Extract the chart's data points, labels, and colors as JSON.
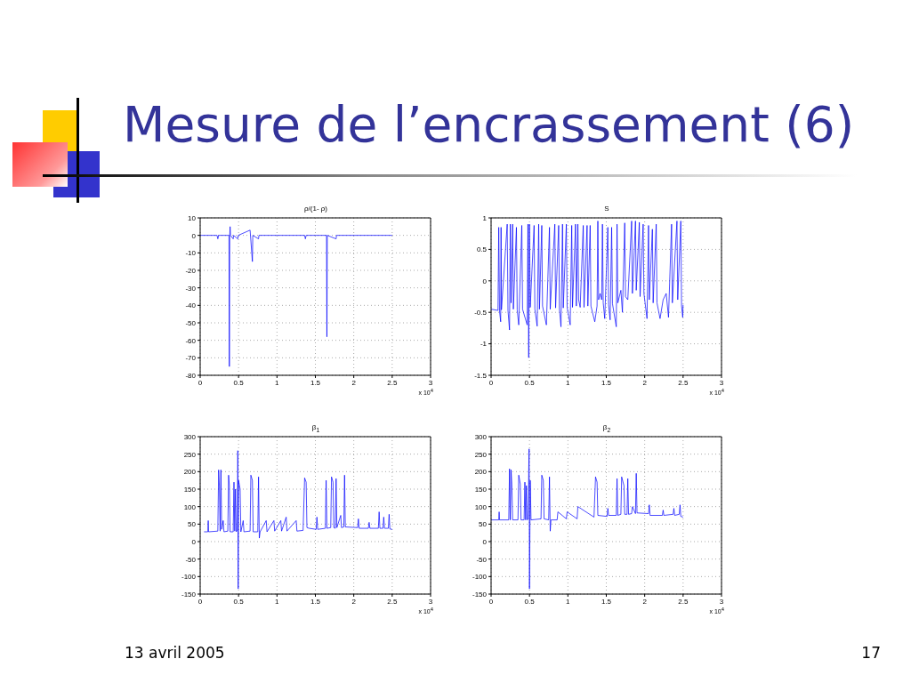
{
  "chart_data": [
    {
      "type": "other",
      "title": "Mesure de l’encrassement (6)",
      "annotations": [
        "13 avril 2005",
        "17"
      ]
    },
    {
      "type": "line",
      "title": "ρ/(1- ρ)",
      "color": "#0000ff",
      "grid": true,
      "xlim": [
        0,
        3
      ],
      "ylim": [
        -80,
        10
      ],
      "xticks": [
        0,
        0.5,
        1,
        1.5,
        2,
        2.5,
        3
      ],
      "yticks": [
        -80,
        -70,
        -60,
        -50,
        -40,
        -30,
        -20,
        -10,
        0,
        10
      ],
      "annotations": [
        "x 10$^{4}$"
      ],
      "x": [
        0,
        0.22,
        0.23,
        0.24,
        0.375,
        0.38,
        0.385,
        0.39,
        0.395,
        0.43,
        0.435,
        0.49,
        0.495,
        0.65,
        0.655,
        0.68,
        0.685,
        0.76,
        0.765,
        1.36,
        1.37,
        1.38,
        1.645,
        1.65,
        1.655,
        1.77,
        1.775,
        2.5
      ],
      "values": [
        0,
        0,
        -2,
        0,
        0,
        -75,
        0,
        5,
        0,
        -2,
        0,
        -2,
        0,
        3,
        0,
        -15,
        0,
        -2,
        0,
        0,
        -2,
        0,
        0,
        -58,
        0,
        -2,
        0,
        0
      ]
    },
    {
      "type": "line",
      "title": "S",
      "color": "#0000ff",
      "grid": true,
      "xlim": [
        0,
        3
      ],
      "ylim": [
        -1.5,
        1
      ],
      "xticks": [
        0,
        0.5,
        1,
        1.5,
        2,
        2.5,
        3
      ],
      "yticks": [
        -1.5,
        -1,
        -0.5,
        0,
        0.5,
        1
      ],
      "annotations": [
        "x 10$^{4}$"
      ],
      "x": [
        0,
        0.09,
        0.1,
        0.11,
        0.125,
        0.13,
        0.135,
        0.21,
        0.22,
        0.24,
        0.25,
        0.26,
        0.28,
        0.29,
        0.33,
        0.34,
        0.36,
        0.4,
        0.41,
        0.47,
        0.48,
        0.49,
        0.5,
        0.51,
        0.56,
        0.57,
        0.6,
        0.62,
        0.63,
        0.66,
        0.67,
        0.72,
        0.76,
        0.77,
        0.83,
        0.84,
        0.88,
        0.89,
        0.91,
        0.93,
        0.94,
        0.98,
        0.99,
        1.03,
        1.05,
        1.06,
        1.1,
        1.11,
        1.13,
        1.14,
        1.16,
        1.2,
        1.21,
        1.25,
        1.26,
        1.29,
        1.3,
        1.35,
        1.38,
        1.39,
        1.4,
        1.42,
        1.44,
        1.45,
        1.46,
        1.48,
        1.52,
        1.53,
        1.55,
        1.57,
        1.58,
        1.63,
        1.64,
        1.65,
        1.69,
        1.71,
        1.74,
        1.75,
        1.78,
        1.83,
        1.84,
        1.88,
        1.89,
        1.93,
        1.94,
        1.98,
        1.99,
        2.03,
        2.05,
        2.06,
        2.1,
        2.11,
        2.15,
        2.16,
        2.2,
        2.24,
        2.28,
        2.31,
        2.35,
        2.36,
        2.42,
        2.43,
        2.47,
        2.48,
        2.495,
        2.5
      ],
      "values": [
        -0.45,
        -0.47,
        0.85,
        -0.48,
        -0.65,
        0.85,
        -0.46,
        0.9,
        -0.47,
        -0.78,
        0.9,
        -0.35,
        0.9,
        -0.45,
        0.85,
        -0.46,
        -0.7,
        0.88,
        -0.45,
        -0.7,
        0.9,
        -1.22,
        0.9,
        -0.42,
        0.88,
        -0.45,
        -0.72,
        0.9,
        -0.45,
        0.88,
        -0.4,
        -0.7,
        0.85,
        -0.45,
        0.9,
        -0.43,
        0.88,
        -0.45,
        -0.73,
        0.9,
        -0.43,
        0.9,
        -0.42,
        -0.7,
        0.88,
        -0.42,
        0.9,
        -0.4,
        0.9,
        -0.3,
        -0.42,
        0.88,
        -0.42,
        0.88,
        -0.4,
        0.88,
        -0.4,
        -0.65,
        -0.4,
        0.95,
        -0.3,
        -0.2,
        -0.3,
        0.9,
        -0.35,
        -0.6,
        0.85,
        -0.38,
        -0.62,
        0.85,
        -0.36,
        -0.73,
        0.9,
        -0.35,
        -0.15,
        -0.5,
        0.92,
        -0.25,
        -0.3,
        0.95,
        -0.2,
        0.95,
        -0.15,
        0.93,
        -0.25,
        0.9,
        -0.2,
        -0.6,
        0.88,
        -0.3,
        0.82,
        -0.35,
        0.9,
        -0.35,
        -0.6,
        -0.3,
        -0.2,
        -0.58,
        0.9,
        -0.35,
        0.95,
        -0.3,
        0.95,
        -0.4,
        -0.58,
        -0.38
      ]
    },
    {
      "type": "line",
      "title": "β$_{1}$",
      "color": "#0000ff",
      "grid": true,
      "xlim": [
        0,
        3
      ],
      "ylim": [
        -150,
        300
      ],
      "xticks": [
        0,
        0.5,
        1,
        1.5,
        2,
        2.5,
        3
      ],
      "yticks": [
        -150,
        -100,
        -50,
        0,
        50,
        100,
        150,
        200,
        250,
        300
      ],
      "annotations": [
        "x 10$^{4}$"
      ],
      "x": [
        0.05,
        0.1,
        0.105,
        0.11,
        0.23,
        0.24,
        0.25,
        0.26,
        0.27,
        0.28,
        0.3,
        0.31,
        0.36,
        0.37,
        0.38,
        0.39,
        0.43,
        0.44,
        0.45,
        0.46,
        0.47,
        0.485,
        0.49,
        0.495,
        0.5,
        0.52,
        0.53,
        0.56,
        0.57,
        0.65,
        0.66,
        0.68,
        0.69,
        0.75,
        0.76,
        0.77,
        0.78,
        0.86,
        0.87,
        0.96,
        0.97,
        1.05,
        1.06,
        1.12,
        1.13,
        1.25,
        1.26,
        1.34,
        1.36,
        1.38,
        1.39,
        1.42,
        1.51,
        1.52,
        1.53,
        1.63,
        1.64,
        1.65,
        1.7,
        1.71,
        1.73,
        1.74,
        1.76,
        1.77,
        1.78,
        1.83,
        1.84,
        1.87,
        1.88,
        1.89,
        2.05,
        2.06,
        2.07,
        2.19,
        2.2,
        2.21,
        2.32,
        2.33,
        2.34,
        2.38,
        2.39,
        2.4,
        2.45,
        2.46,
        2.47,
        2.5
      ],
      "values": [
        28,
        28,
        60,
        28,
        30,
        205,
        160,
        30,
        205,
        35,
        60,
        28,
        30,
        190,
        160,
        28,
        28,
        170,
        30,
        150,
        28,
        35,
        260,
        -135,
        175,
        150,
        28,
        60,
        28,
        30,
        190,
        175,
        28,
        28,
        185,
        10,
        28,
        60,
        28,
        60,
        30,
        60,
        30,
        70,
        30,
        60,
        30,
        32,
        182,
        170,
        40,
        38,
        35,
        70,
        35,
        38,
        175,
        38,
        40,
        185,
        170,
        40,
        38,
        180,
        40,
        75,
        40,
        42,
        190,
        42,
        40,
        65,
        38,
        38,
        55,
        38,
        38,
        85,
        38,
        38,
        70,
        38,
        38,
        78,
        36,
        35
      ]
    },
    {
      "type": "line",
      "title": "β$_{2}$",
      "color": "#0000ff",
      "grid": true,
      "xlim": [
        0,
        3
      ],
      "ylim": [
        -150,
        300
      ],
      "xticks": [
        0,
        0.5,
        1,
        1.5,
        2,
        2.5,
        3
      ],
      "yticks": [
        -150,
        -100,
        -50,
        0,
        50,
        100,
        150,
        200,
        250,
        300
      ],
      "annotations": [
        "x 10$^{4}$"
      ],
      "x": [
        0,
        0.1,
        0.105,
        0.11,
        0.23,
        0.24,
        0.25,
        0.26,
        0.27,
        0.28,
        0.35,
        0.36,
        0.38,
        0.39,
        0.43,
        0.44,
        0.45,
        0.46,
        0.47,
        0.485,
        0.49,
        0.495,
        0.5,
        0.51,
        0.52,
        0.65,
        0.66,
        0.68,
        0.69,
        0.75,
        0.76,
        0.77,
        0.78,
        0.86,
        0.87,
        0.98,
        0.99,
        1.12,
        1.13,
        1.34,
        1.36,
        1.38,
        1.39,
        1.51,
        1.52,
        1.53,
        1.63,
        1.64,
        1.65,
        1.69,
        1.7,
        1.73,
        1.74,
        1.77,
        1.78,
        1.79,
        1.83,
        1.84,
        1.88,
        1.89,
        1.9,
        2.05,
        2.06,
        2.07,
        2.23,
        2.24,
        2.25,
        2.37,
        2.38,
        2.39,
        2.45,
        2.46,
        2.47,
        2.5
      ],
      "values": [
        62,
        62,
        85,
        62,
        62,
        208,
        62,
        205,
        165,
        62,
        62,
        190,
        165,
        62,
        62,
        170,
        62,
        160,
        62,
        65,
        195,
        265,
        -135,
        175,
        62,
        65,
        190,
        175,
        65,
        62,
        185,
        30,
        62,
        62,
        85,
        65,
        85,
        65,
        100,
        70,
        185,
        170,
        75,
        72,
        95,
        75,
        75,
        180,
        75,
        78,
        185,
        160,
        78,
        78,
        180,
        78,
        80,
        100,
        80,
        195,
        82,
        80,
        105,
        75,
        75,
        90,
        75,
        78,
        95,
        75,
        78,
        105,
        72,
        70
      ]
    }
  ]
}
